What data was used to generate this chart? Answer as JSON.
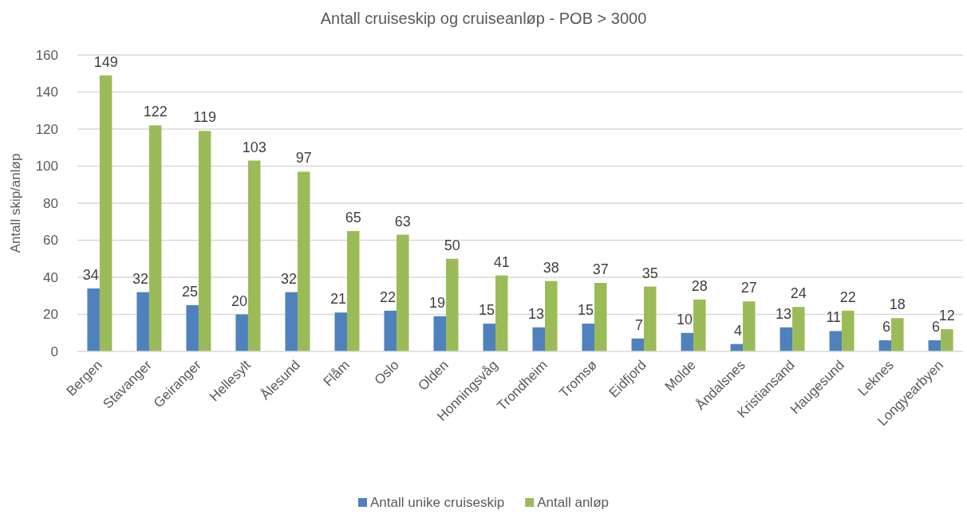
{
  "chart_data": {
    "type": "bar",
    "title": "Antall cruiseskip og cruiseanløp - POB > 3000",
    "ylabel": "Antall skip/anløp",
    "categories": [
      "Bergen",
      "Stavanger",
      "Geiranger",
      "Hellesylt",
      "Ålesund",
      "Flåm",
      "Oslo",
      "Olden",
      "Honningsvåg",
      "Trondheim",
      "Tromsø",
      "Eidfjord",
      "Molde",
      "Åndalsnes",
      "Kristiansand",
      "Haugesund",
      "Leknes",
      "Longyearbyen"
    ],
    "series": [
      {
        "name": "Antall unike cruiseskip",
        "color": "#4f81bd",
        "values": [
          34,
          32,
          25,
          20,
          32,
          21,
          22,
          19,
          15,
          13,
          15,
          7,
          10,
          4,
          13,
          11,
          6,
          6
        ]
      },
      {
        "name": "Antall anløp",
        "color": "#9bbb59",
        "values": [
          149,
          122,
          119,
          103,
          97,
          65,
          63,
          50,
          41,
          38,
          37,
          35,
          28,
          27,
          24,
          22,
          18,
          12
        ]
      }
    ],
    "ylim": [
      0,
      160
    ],
    "yticks": [
      0,
      20,
      40,
      60,
      80,
      100,
      120,
      140,
      160
    ],
    "grid": "y",
    "legend": "bottom",
    "data_labels": true
  }
}
